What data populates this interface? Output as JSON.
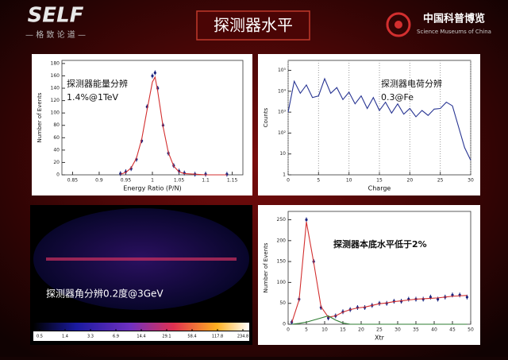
{
  "header": {
    "logo": "SELF",
    "logo_subtitle": "— 格 致 论 道 —",
    "title": "探测器水平",
    "org_name": "中国科普博览",
    "org_name_en": "Science Museums of China"
  },
  "chart_data": [
    {
      "type": "scatter",
      "annotations": [
        "探测器能量分辨",
        "1.4%@1TeV"
      ],
      "x_label": "Energy Ratio (P/N)",
      "y_label": "Number of Events",
      "xlim": [
        0.83,
        1.17
      ],
      "xticks": [
        0.85,
        0.9,
        0.95,
        1,
        1.05,
        1.1,
        1.15
      ],
      "ylim": [
        0,
        185
      ],
      "yticks": [
        0,
        20,
        40,
        60,
        80,
        100,
        120,
        140,
        160,
        180
      ],
      "x": [
        0.94,
        0.95,
        0.96,
        0.97,
        0.98,
        0.99,
        1.0,
        1.005,
        1.01,
        1.02,
        1.03,
        1.04,
        1.05,
        1.06,
        1.08,
        1.1,
        1.14
      ],
      "series": [
        {
          "color": "#1a237e",
          "mode": "points",
          "values": [
            2,
            5,
            10,
            25,
            55,
            110,
            160,
            165,
            140,
            80,
            35,
            15,
            6,
            3,
            1,
            1,
            1
          ]
        },
        {
          "color": "#d32f2f",
          "mode": "line",
          "values": [
            1,
            4,
            11,
            27,
            58,
            105,
            150,
            158,
            135,
            78,
            36,
            14,
            5,
            2,
            1,
            0,
            0
          ]
        }
      ]
    },
    {
      "type": "line",
      "annotations": [
        "探测器电荷分辨",
        "0.3@Fe"
      ],
      "x_label": "Charge",
      "y_label": "Counts",
      "log_y": true,
      "xlim": [
        0,
        30
      ],
      "xticks": [
        0,
        5,
        10,
        15,
        20,
        25,
        30
      ],
      "ylim": [
        1,
        300000
      ],
      "yticks": [
        1,
        10,
        {
          "value": 100,
          "label": "10²"
        },
        {
          "value": 1000,
          "label": "10³"
        },
        {
          "value": 10000,
          "label": "10⁴"
        },
        {
          "value": 100000,
          "label": "10⁵"
        }
      ],
      "grid_x": true,
      "x": [
        0,
        1,
        2,
        3,
        4,
        5,
        6,
        7,
        8,
        9,
        10,
        11,
        12,
        13,
        14,
        15,
        16,
        17,
        18,
        19,
        20,
        21,
        22,
        23,
        24,
        25,
        26,
        27,
        28,
        29,
        30
      ],
      "series": [
        {
          "color": "#283593",
          "mode": "line",
          "values": [
            1000,
            30000,
            8000,
            20000,
            5000,
            6000,
            40000,
            8000,
            15000,
            4000,
            9000,
            2500,
            6000,
            1500,
            5000,
            1200,
            3000,
            900,
            2500,
            800,
            1500,
            600,
            1200,
            700,
            1400,
            1500,
            3000,
            2000,
            200,
            20,
            5
          ]
        }
      ]
    },
    {
      "type": "skymap",
      "annotation": "探测器角分辨0.2度@3GeV",
      "colorbar_ticks": [
        0.5,
        1.4,
        3.3,
        6.9,
        14.4,
        29.1,
        58.4,
        117.8,
        234.8
      ]
    },
    {
      "type": "scatter",
      "annotations": [
        "探测器本底水平低于2%"
      ],
      "x_label": "Xtr",
      "y_label": "Number of Events",
      "xlim": [
        0,
        50
      ],
      "xticks": [
        0,
        5,
        10,
        15,
        20,
        25,
        30,
        35,
        40,
        45,
        50
      ],
      "ylim": [
        0,
        270
      ],
      "yticks": [
        0,
        50,
        100,
        150,
        200,
        250
      ],
      "x": [
        1,
        3,
        5,
        7,
        9,
        11,
        13,
        15,
        17,
        19,
        21,
        23,
        25,
        27,
        29,
        31,
        33,
        35,
        37,
        39,
        41,
        43,
        45,
        47,
        49
      ],
      "series": [
        {
          "color": "#1a237e",
          "mode": "points",
          "values": [
            5,
            60,
            250,
            150,
            40,
            15,
            20,
            30,
            35,
            40,
            40,
            45,
            50,
            50,
            55,
            55,
            60,
            60,
            60,
            65,
            60,
            65,
            70,
            70,
            65
          ]
        },
        {
          "color": "#d32f2f",
          "mode": "line",
          "values": [
            4,
            58,
            245,
            148,
            42,
            17,
            20,
            29,
            35,
            39,
            41,
            45,
            49,
            51,
            54,
            56,
            58,
            60,
            61,
            62,
            63,
            65,
            67,
            68,
            69
          ]
        },
        {
          "color": "#2e7d32",
          "mode": "line",
          "values": [
            0,
            2,
            5,
            10,
            15,
            20,
            10,
            3,
            0,
            0,
            0,
            0,
            0,
            0,
            0,
            0,
            0,
            0,
            0,
            0,
            0,
            0,
            0,
            0,
            0
          ]
        }
      ]
    }
  ]
}
